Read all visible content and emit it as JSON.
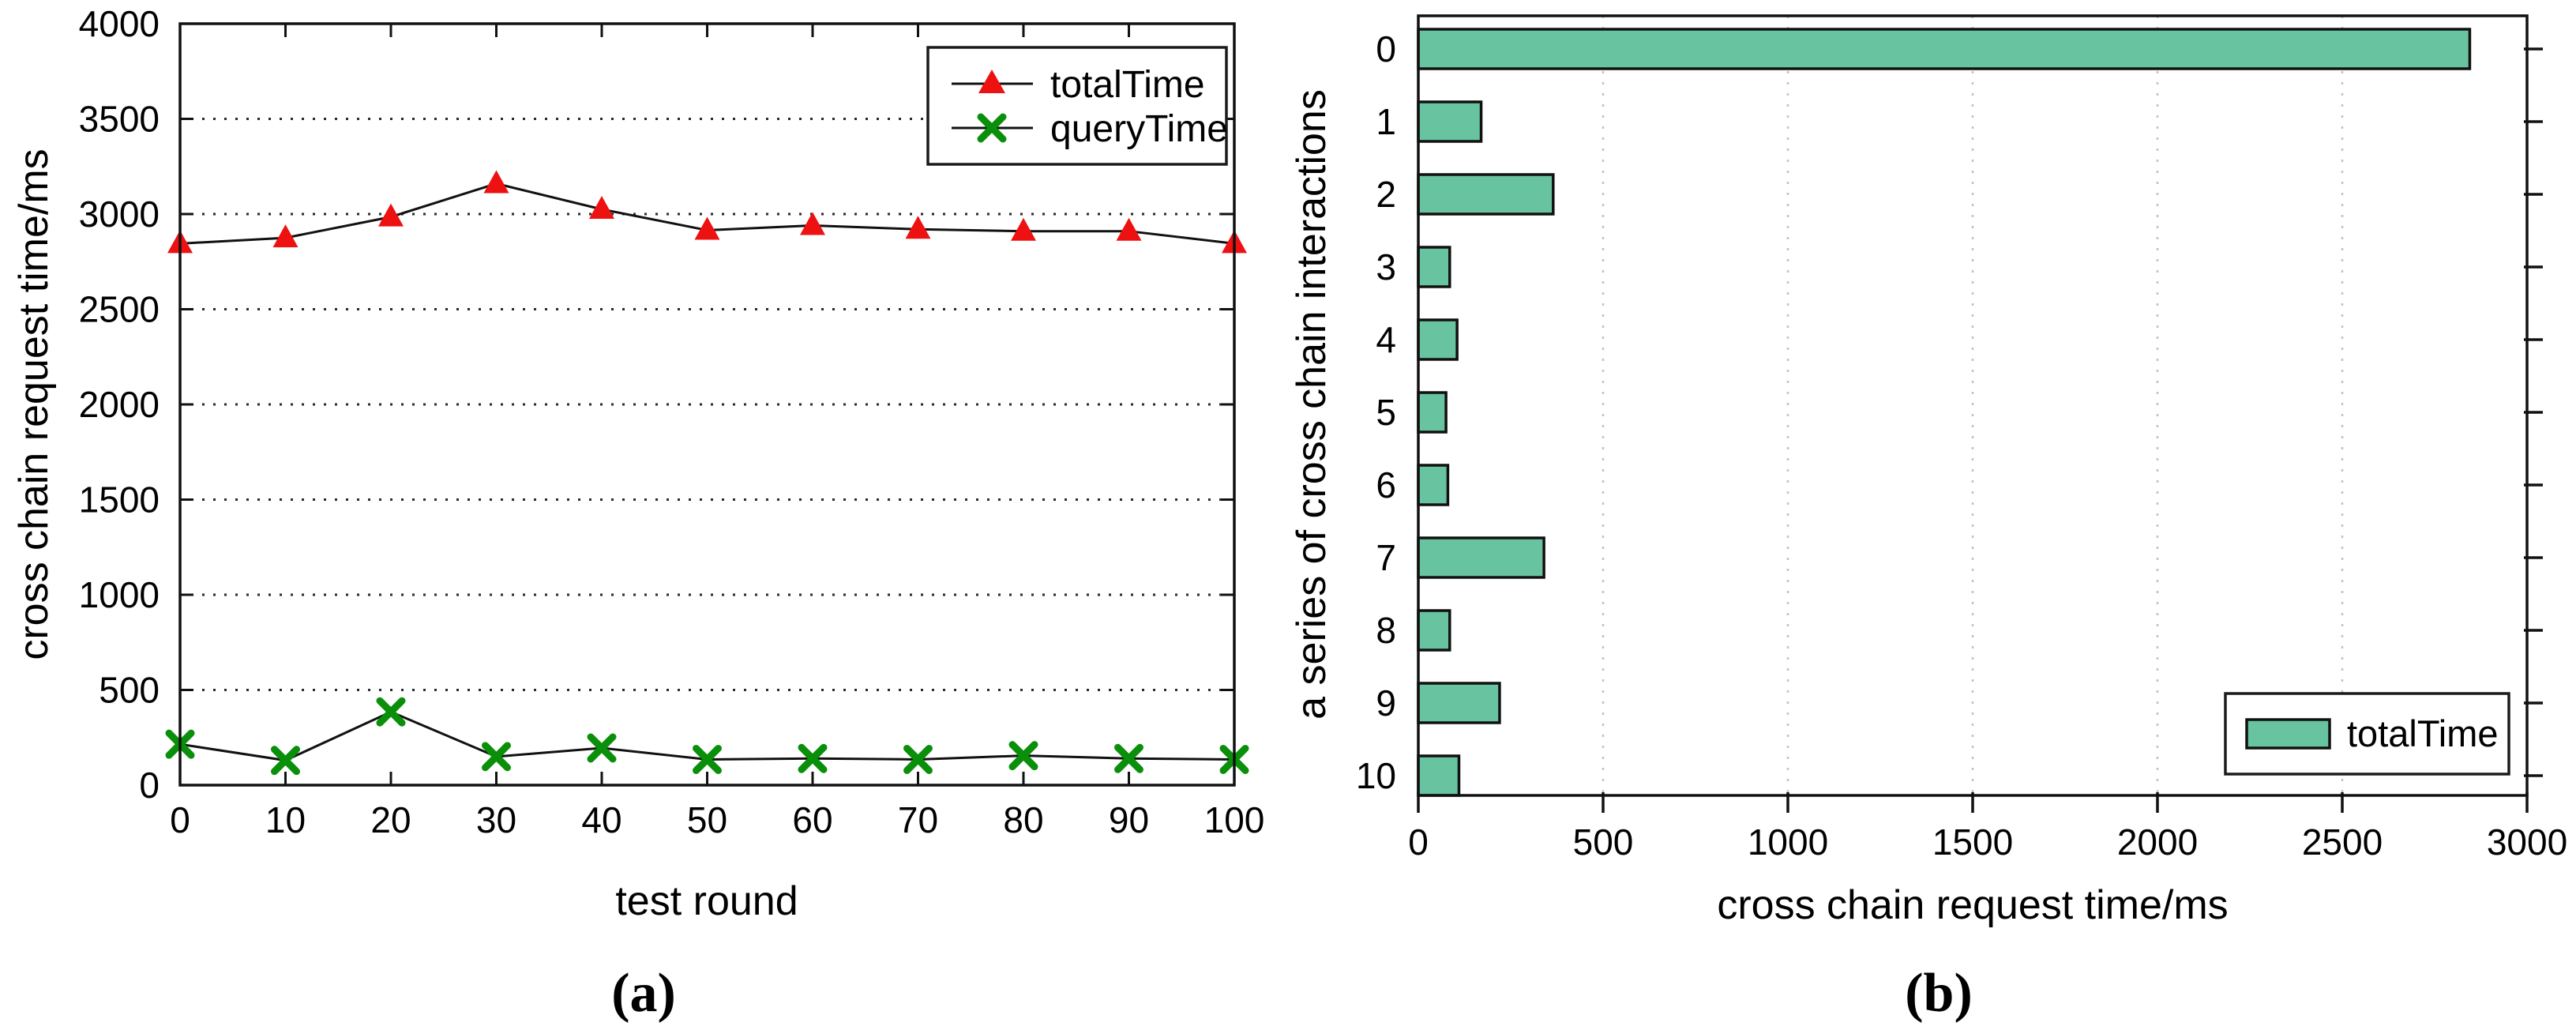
{
  "figure": {
    "caption_a": "(a)",
    "caption_b": "(b)",
    "background": "#ffffff"
  },
  "chart_data": [
    {
      "id": "a",
      "type": "line",
      "xlabel": "test round",
      "ylabel": "cross chain request time/ms",
      "xlim": [
        0,
        100
      ],
      "ylim": [
        0,
        4000
      ],
      "xticks": [
        0,
        10,
        20,
        30,
        40,
        50,
        60,
        70,
        80,
        90,
        100
      ],
      "yticks": [
        0,
        500,
        1000,
        1500,
        2000,
        2500,
        3000,
        3500,
        4000
      ],
      "grid": "horizontal-dotted",
      "grid_color": "#2a2a2a",
      "legend_position": "top-right",
      "x": [
        0,
        10,
        20,
        30,
        40,
        50,
        60,
        70,
        80,
        90,
        100
      ],
      "series": [
        {
          "name": "totalTime",
          "marker": "triangle",
          "marker_color": "#ee1111",
          "line_color": "#111111",
          "values": [
            2845,
            2875,
            2985,
            3160,
            3025,
            2915,
            2940,
            2920,
            2910,
            2910,
            2845
          ]
        },
        {
          "name": "queryTime",
          "marker": "x",
          "marker_color": "#0a8f0a",
          "line_color": "#111111",
          "values": [
            215,
            130,
            385,
            150,
            195,
            135,
            140,
            135,
            155,
            140,
            135
          ]
        }
      ]
    },
    {
      "id": "b",
      "type": "bar",
      "orientation": "horizontal",
      "xlabel": "cross chain request time/ms",
      "ylabel": "a series of cross chain interactions",
      "categories": [
        "0",
        "1",
        "2",
        "3",
        "4",
        "5",
        "6",
        "7",
        "8",
        "9",
        "10"
      ],
      "values": [
        2845,
        170,
        365,
        85,
        105,
        75,
        80,
        340,
        85,
        220,
        110
      ],
      "xlim": [
        0,
        3000
      ],
      "xticks": [
        0,
        500,
        1000,
        1500,
        2000,
        2500,
        3000
      ],
      "grid": "vertical-dotted",
      "grid_color": "#c2c2c2",
      "bar_color": "#68c3a0",
      "bar_edge": "#111111",
      "legend": {
        "label": "totalTime",
        "position": "bottom-right"
      }
    }
  ]
}
